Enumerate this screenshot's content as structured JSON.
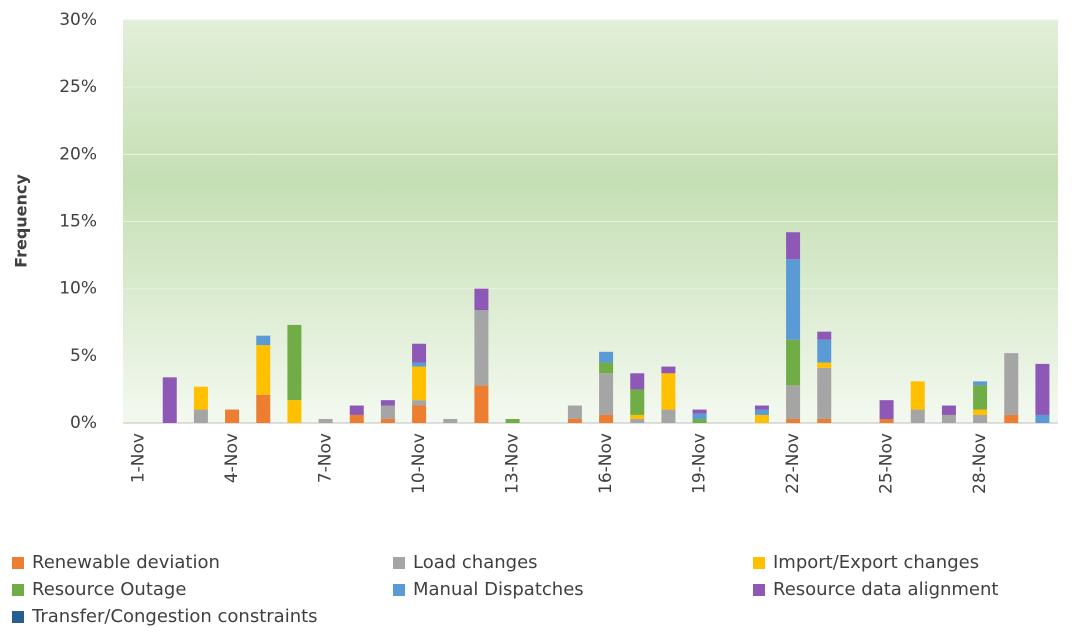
{
  "chart_data": {
    "type": "bar",
    "stacked": true,
    "y_label": "Frequency",
    "categories": [
      "1-Nov",
      null,
      null,
      "4-Nov",
      null,
      null,
      "7-Nov",
      null,
      null,
      "10-Nov",
      null,
      null,
      "13-Nov",
      null,
      null,
      "16-Nov",
      null,
      null,
      "19-Nov",
      null,
      null,
      "22-Nov",
      null,
      null,
      "25-Nov",
      null,
      null,
      "28-Nov",
      null,
      null
    ],
    "series": [
      {
        "name": "Renewable deviation",
        "color": "#ed7d31",
        "values": [
          0,
          0,
          0,
          1.0,
          2.1,
          0,
          0,
          0.6,
          0.3,
          1.3,
          0,
          2.8,
          0,
          0,
          0.3,
          0.6,
          0,
          0,
          0,
          0,
          0,
          0.3,
          0.3,
          0,
          0.3,
          0,
          0,
          0,
          0.6,
          0
        ]
      },
      {
        "name": "Load changes",
        "color": "#a5a5a5",
        "values": [
          0,
          0,
          1.0,
          0,
          0,
          0,
          0.3,
          0,
          1.0,
          0.4,
          0.3,
          5.6,
          0,
          0,
          1.0,
          3.1,
          0.3,
          1.0,
          0,
          0,
          0,
          2.5,
          3.8,
          0,
          0,
          1.0,
          0.6,
          0.6,
          4.6,
          0
        ]
      },
      {
        "name": "Import/Export changes",
        "color": "#ffc000",
        "values": [
          0,
          0,
          1.7,
          0,
          3.7,
          1.7,
          0,
          0,
          0,
          2.5,
          0,
          0,
          0,
          0,
          0,
          0,
          0.3,
          2.7,
          0,
          0,
          0.6,
          0,
          0.4,
          0,
          0,
          2.1,
          0,
          0.4,
          0,
          0
        ]
      },
      {
        "name": "Resource Outage",
        "color": "#70ad47",
        "values": [
          0,
          0,
          0,
          0,
          0,
          5.6,
          0,
          0,
          0,
          0,
          0,
          0,
          0.3,
          0,
          0,
          0.8,
          1.9,
          0,
          0.3,
          0,
          0,
          3.4,
          0,
          0,
          0,
          0,
          0,
          1.8,
          0,
          0
        ]
      },
      {
        "name": "Manual Dispatches",
        "color": "#5b9bd5",
        "values": [
          0,
          0,
          0,
          0,
          0.7,
          0,
          0,
          0,
          0,
          0.3,
          0,
          0,
          0,
          0,
          0,
          0.8,
          0,
          0,
          0.4,
          0,
          0.4,
          6.0,
          1.7,
          0,
          0,
          0,
          0,
          0.3,
          0,
          0.6
        ]
      },
      {
        "name": "Resource data alignment",
        "color": "#8e58b6",
        "values": [
          0,
          3.4,
          0,
          0,
          0,
          0,
          0,
          0.7,
          0.4,
          1.4,
          0,
          1.6,
          0,
          0,
          0,
          0,
          1.2,
          0.5,
          0.3,
          0,
          0.3,
          2.0,
          0.6,
          0,
          1.4,
          0,
          0.7,
          0,
          0,
          3.8
        ]
      },
      {
        "name": "Transfer/Congestion constraints",
        "color": "#255e91",
        "values": [
          0,
          0,
          0,
          0,
          0,
          0,
          0,
          0,
          0,
          0,
          0,
          0,
          0,
          0,
          0,
          0,
          0,
          0,
          0,
          0,
          0,
          0,
          0,
          0,
          0,
          0,
          0,
          0,
          0,
          0
        ]
      }
    ],
    "ylim": [
      0,
      30
    ],
    "yticks": [
      {
        "value": 0,
        "label": "0%"
      },
      {
        "value": 5,
        "label": "5%"
      },
      {
        "value": 10,
        "label": "10%"
      },
      {
        "value": 15,
        "label": "15%"
      },
      {
        "value": 20,
        "label": "20%"
      },
      {
        "value": 25,
        "label": "25%"
      },
      {
        "value": 30,
        "label": "30%"
      }
    ],
    "grid": true
  }
}
